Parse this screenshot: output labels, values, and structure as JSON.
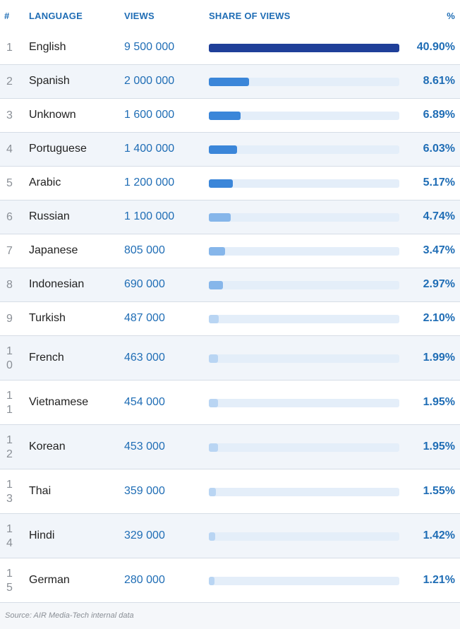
{
  "header": {
    "num": "#",
    "language": "LANGUAGE",
    "views": "VIEWS",
    "share": "SHARE OF VIEWS",
    "pct": "%"
  },
  "rows": [
    {
      "rank": "1",
      "language": "English",
      "views": "9 500 000",
      "percent": "40.90%"
    },
    {
      "rank": "2",
      "language": "Spanish",
      "views": "2 000 000",
      "percent": "8.61%"
    },
    {
      "rank": "3",
      "language": "Unknown",
      "views": "1 600 000",
      "percent": "6.89%"
    },
    {
      "rank": "4",
      "language": "Portuguese",
      "views": "1 400 000",
      "percent": "6.03%"
    },
    {
      "rank": "5",
      "language": "Arabic",
      "views": "1 200 000",
      "percent": "5.17%"
    },
    {
      "rank": "6",
      "language": "Russian",
      "views": "1 100 000",
      "percent": "4.74%"
    },
    {
      "rank": "7",
      "language": "Japanese",
      "views": "805 000",
      "percent": "3.47%"
    },
    {
      "rank": "8",
      "language": "Indonesian",
      "views": "690 000",
      "percent": "2.97%"
    },
    {
      "rank": "9",
      "language": "Turkish",
      "views": "487 000",
      "percent": "2.10%"
    },
    {
      "rank": "10",
      "language": "French",
      "views": "463 000",
      "percent": "1.99%"
    },
    {
      "rank": "11",
      "language": "Vietnamese",
      "views": "454 000",
      "percent": "1.95%"
    },
    {
      "rank": "12",
      "language": "Korean",
      "views": "453 000",
      "percent": "1.95%"
    },
    {
      "rank": "13",
      "language": "Thai",
      "views": "359 000",
      "percent": "1.55%"
    },
    {
      "rank": "14",
      "language": "Hindi",
      "views": "329 000",
      "percent": "1.42%"
    },
    {
      "rank": "15",
      "language": "German",
      "views": "280 000",
      "percent": "1.21%"
    }
  ],
  "source": "Source: AIR Media-Tech internal data",
  "colors": {
    "bar_top": "#1f3f99",
    "bar_mid": "#3b86d9",
    "bar_light": "#86b6ea",
    "bar_pale": "#b9d5f3",
    "track": "#e4eef9",
    "accent_text": "#1f6db5"
  },
  "chart_data": {
    "type": "bar",
    "orientation": "horizontal",
    "categories": [
      "English",
      "Spanish",
      "Unknown",
      "Portuguese",
      "Arabic",
      "Russian",
      "Japanese",
      "Indonesian",
      "Turkish",
      "French",
      "Vietnamese",
      "Korean",
      "Thai",
      "Hindi",
      "German"
    ],
    "values": [
      40.9,
      8.61,
      6.89,
      6.03,
      5.17,
      4.74,
      3.47,
      2.97,
      2.1,
      1.99,
      1.95,
      1.95,
      1.55,
      1.42,
      1.21
    ],
    "views": [
      9500000,
      2000000,
      1600000,
      1400000,
      1200000,
      1100000,
      805000,
      690000,
      487000,
      463000,
      454000,
      453000,
      359000,
      329000,
      280000
    ],
    "xlim": [
      0,
      40.9
    ],
    "title": "",
    "xlabel": "SHARE OF VIEWS",
    "ylabel": "LANGUAGE"
  }
}
